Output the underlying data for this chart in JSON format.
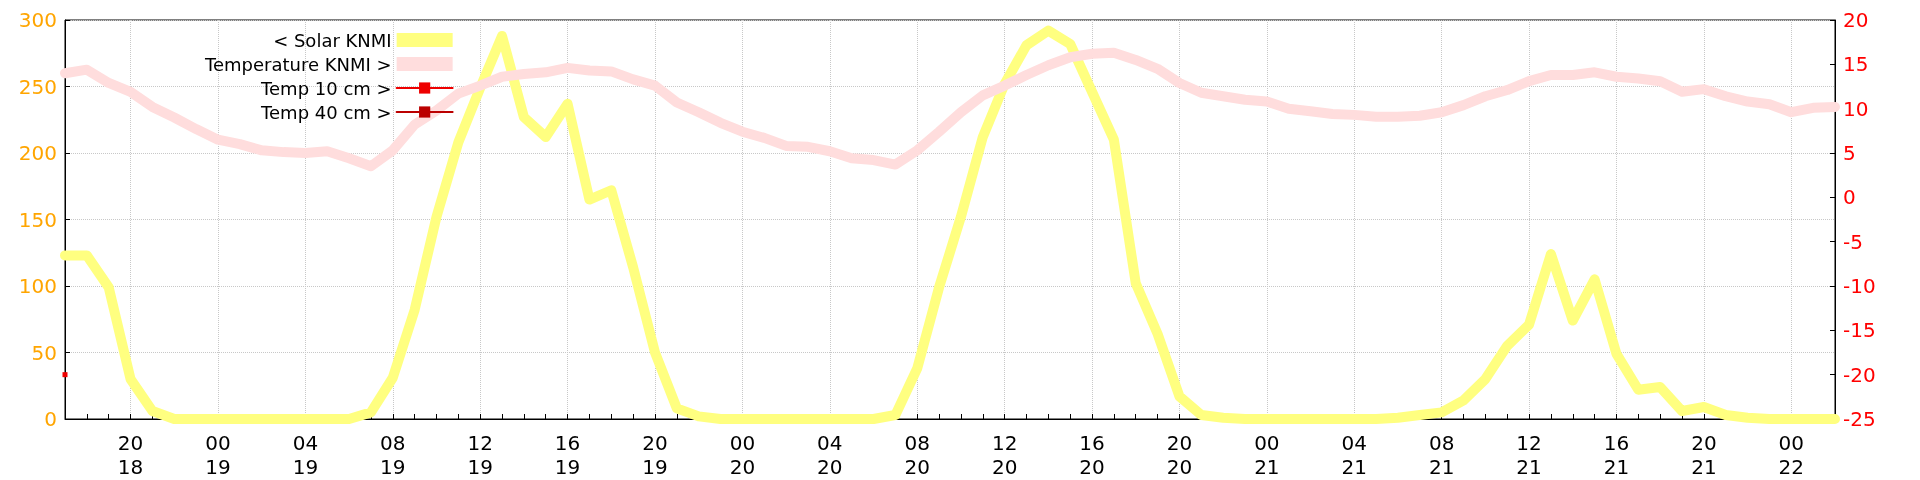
{
  "chart_data": {
    "type": "line",
    "categories": [
      null,
      null,
      null,
      "20\n18",
      null,
      null,
      null,
      "00\n19",
      null,
      null,
      null,
      "04\n19",
      null,
      null,
      null,
      "08\n19",
      null,
      null,
      null,
      "12\n19",
      null,
      null,
      null,
      "16\n19",
      null,
      null,
      null,
      "20\n19",
      null,
      null,
      null,
      "00\n20",
      null,
      null,
      null,
      "04\n20",
      null,
      null,
      null,
      "08\n20",
      null,
      null,
      null,
      "12\n20",
      null,
      null,
      null,
      "16\n20",
      null,
      null,
      null,
      "20\n20",
      null,
      null,
      null,
      "00\n21",
      null,
      null,
      null,
      "04\n21",
      null,
      null,
      null,
      "08\n21",
      null,
      null,
      null,
      "12\n21",
      null,
      null,
      null,
      "16\n21",
      null,
      null,
      null,
      "20\n21",
      null,
      null,
      null,
      "00\n22",
      null,
      null
    ],
    "series": [
      {
        "name": "< Solar KNMI",
        "color": "#ffff80",
        "values": [
          123,
          123,
          99,
          30,
          6,
          0,
          0,
          0,
          0,
          0,
          0,
          0,
          0,
          0,
          5,
          31,
          82,
          152,
          208,
          249,
          288,
          227,
          212,
          237,
          165,
          172,
          114,
          50,
          8,
          2,
          0,
          0,
          0,
          0,
          0,
          0,
          0,
          0,
          3,
          38,
          99,
          152,
          212,
          252,
          281,
          292,
          282,
          246,
          210,
          102,
          64,
          17,
          3,
          1,
          0,
          0,
          0,
          0,
          0,
          0,
          0,
          1,
          3,
          5,
          14,
          30,
          55,
          71,
          124,
          74,
          105,
          49,
          22,
          24,
          6,
          9,
          3,
          1,
          0,
          0,
          0,
          0
        ]
      },
      {
        "name": "Temperature KNMI >",
        "color": "#ffdddd",
        "axis": "y2",
        "values": [
          14.0,
          14.4,
          12.9,
          11.9,
          10.2,
          9.0,
          7.7,
          6.5,
          6.0,
          5.3,
          5.1,
          5.0,
          5.2,
          4.4,
          3.5,
          5.3,
          8.2,
          9.8,
          11.7,
          12.6,
          13.6,
          13.9,
          14.1,
          14.6,
          14.3,
          14.2,
          13.3,
          12.6,
          10.7,
          9.6,
          8.4,
          7.4,
          6.7,
          5.8,
          5.7,
          5.2,
          4.4,
          4.2,
          3.7,
          5.3,
          7.4,
          9.6,
          11.5,
          12.6,
          13.8,
          14.9,
          15.8,
          16.2,
          16.3,
          15.5,
          14.5,
          12.9,
          11.8,
          11.4,
          11.0,
          10.8,
          10.0,
          9.7,
          9.4,
          9.3,
          9.1,
          9.1,
          9.2,
          9.6,
          10.4,
          11.4,
          12.1,
          13.1,
          13.8,
          13.8,
          14.1,
          13.6,
          13.4,
          13.1,
          11.9,
          12.2,
          11.4,
          10.8,
          10.5,
          9.6,
          10.1,
          10.2
        ]
      },
      {
        "name": "Temp 10 cm >",
        "color": "#ee0000",
        "axis": "y2",
        "marker": "square",
        "values": [
          -20,
          null,
          null,
          null,
          null,
          null,
          null,
          null,
          null,
          null,
          null,
          null,
          null,
          null,
          null,
          null,
          null,
          null,
          null,
          null,
          null,
          null,
          null,
          null,
          null,
          null,
          null,
          null,
          null,
          null,
          null,
          null,
          null,
          null,
          null,
          null,
          null,
          null,
          null,
          null,
          null,
          null,
          null,
          null,
          null,
          null,
          null,
          null,
          null,
          null,
          null,
          null,
          null,
          null,
          null,
          null,
          null,
          null,
          null,
          null,
          null,
          null,
          null,
          null,
          null,
          null,
          null,
          null,
          null,
          null,
          null,
          null,
          null,
          null,
          null,
          null,
          null,
          null,
          null,
          null,
          null,
          null
        ]
      },
      {
        "name": "Temp 40 cm >",
        "color": "#bb0000",
        "axis": "y2",
        "marker": "square",
        "values": [
          null,
          null,
          null,
          null,
          null,
          null,
          null,
          null,
          null,
          null,
          null,
          null,
          null,
          null,
          null,
          null,
          null,
          null,
          null,
          null,
          null,
          null,
          null,
          null,
          null,
          null,
          null,
          null,
          null,
          null,
          null,
          null,
          null,
          null,
          null,
          null,
          null,
          null,
          null,
          null,
          null,
          null,
          null,
          null,
          null,
          null,
          null,
          null,
          null,
          null,
          null,
          null,
          null,
          null,
          null,
          null,
          null,
          null,
          null,
          null,
          null,
          null,
          null,
          null,
          null,
          null,
          null,
          null,
          null,
          null,
          null,
          null,
          null,
          null,
          null,
          null,
          null,
          null,
          null,
          null,
          null,
          null
        ]
      }
    ],
    "ylim": [
      0,
      300
    ],
    "yticks": [
      0,
      50,
      100,
      150,
      200,
      250,
      300
    ],
    "y2lim": [
      -25,
      20
    ],
    "y2ticks": [
      -25,
      -20,
      -15,
      -10,
      -5,
      0,
      5,
      10,
      15,
      20
    ],
    "grid": true,
    "legend": "top left",
    "line_style": "solid"
  }
}
